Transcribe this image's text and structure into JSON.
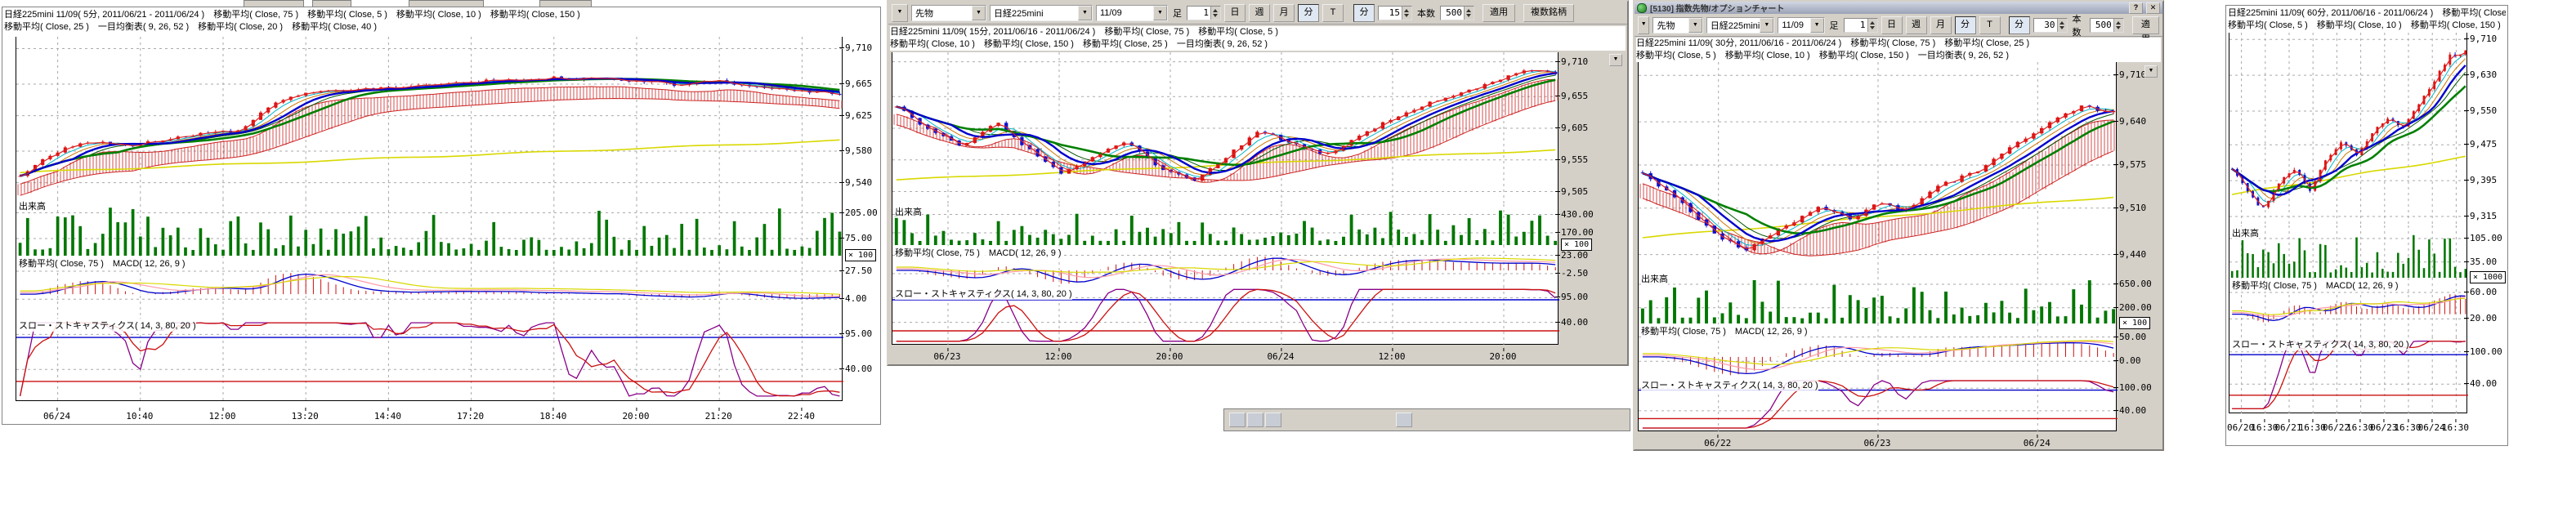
{
  "app": {
    "window3_title": {
      "code_text": "[5130] 指数先物/オプションチャート",
      "help_button": "?",
      "close_button": "✕"
    },
    "colors": {
      "chrome": "#d4d0c8",
      "candle_up": "#dd1111",
      "candle_down": "#1111cc",
      "ma_green": "#008000",
      "ma_blue": "#0000cc",
      "ma_red": "#dd2222",
      "ma_cyan": "#00b8c8",
      "ma_yellow": "#d8d800",
      "ma_orange": "#cc7700",
      "ma_darkgreen": "#005500",
      "volume_bar": "#007700",
      "macd_hist": "#cc1111",
      "stoch_k": "#880088",
      "stoch_d": "#cc1111",
      "stoch_upper_line": "#0000cc",
      "stoch_lower_line": "#cc1111",
      "grid": "#aaaaaa"
    }
  },
  "panels": [
    {
      "header_lines": [
        "日経225mini 11/09( 5分, 2011/06/21 - 2011/06/24 )　移動平均( Close, 75 )　移動平均( Close, 5 )　移動平均( Close, 10 )　移動平均( Close, 150 )",
        "移動平均( Close, 25 )　一目均衡表( 9, 26, 52 )　移動平均( Close, 20 )　移動平均( Close, 40 )"
      ],
      "sections": {
        "volume_label": "出来高",
        "macd_label": "移動平均( Close, 75 )　MACD( 12, 26, 9 )",
        "stoch_label": "スロー・ストキャスティクス( 14, 3, 80, 20 )"
      },
      "axis": {
        "price_ticks": [
          "9,710",
          "9,665",
          "9,625",
          "9,580",
          "9,540"
        ],
        "volume_ticks": [
          "205.00",
          "75.00"
        ],
        "multiplier": "× 100",
        "macd_ticks": [
          "27.50",
          "4.00"
        ],
        "stoch_ticks": [
          "95.00",
          "40.00"
        ]
      },
      "time_ticks": [
        "06/24",
        "10:40",
        "12:00",
        "13:20",
        "14:40",
        "17:20",
        "18:40",
        "20:00",
        "21:20",
        "22:40"
      ]
    },
    {
      "toolbar": {
        "collapse": "▼",
        "market": "先物",
        "symbol": "日経225mini",
        "contract": "11/09",
        "ashi_label": "足",
        "ashi_value": "1",
        "period_day": "日",
        "period_week": "週",
        "period_month": "月",
        "period_min": "分",
        "period_tick": "T",
        "unit_label": "分",
        "unit_value": "15",
        "count_label": "本数",
        "count_value": "500",
        "apply_label": "適用",
        "multi_label": "複数銘柄"
      },
      "header_lines": [
        "日経225mini 11/09( 15分, 2011/06/16 - 2011/06/24 )　移動平均( Close, 75 )　移動平均( Close, 5 )",
        "移動平均( Close, 10 )　移動平均( Close, 150 )　移動平均( Close, 25 )　一目均衡表( 9, 26, 52 )"
      ],
      "sections": {
        "volume_label": "出来高",
        "macd_label": "移動平均( Close, 75 )　MACD( 12, 26, 9 )",
        "stoch_label": "スロー・ストキャスティクス( 14, 3, 80, 20 )"
      },
      "axis": {
        "price_ticks": [
          "9,710",
          "9,655",
          "9,605",
          "9,555",
          "9,505"
        ],
        "volume_ticks": [
          "430.00",
          "170.00"
        ],
        "multiplier": "× 100",
        "macd_ticks": [
          "23.00",
          "-2.50"
        ],
        "stoch_ticks": [
          "95.00",
          "40.00"
        ]
      },
      "time_ticks": [
        "06/23",
        "12:00",
        "20:00",
        "06/24",
        "12:00",
        "20:00"
      ]
    },
    {
      "toolbar": {
        "collapse": "▼",
        "market": "先物",
        "symbol": "日経225mini",
        "contract": "11/09",
        "ashi_label": "足",
        "ashi_value": "1",
        "period_day": "日",
        "period_week": "週",
        "period_month": "月",
        "period_min": "分",
        "period_tick": "T",
        "unit_label": "分",
        "unit_value": "30",
        "count_label": "本数",
        "count_value": "500",
        "apply_label": "適用"
      },
      "header_lines": [
        "日経225mini 11/09( 30分, 2011/06/16 - 2011/06/24 )　移動平均( Close, 75 )　移動平均( Close, 25 )",
        "移動平均( Close, 5 )　移動平均( Close, 10 )　移動平均( Close, 150 )　一目均衡表( 9, 26, 52 )"
      ],
      "sections": {
        "volume_label": "出来高",
        "macd_label": "移動平均( Close, 75 )　MACD( 12, 26, 9 )",
        "stoch_label": "スロー・ストキャスティクス( 14, 3, 80, 20 )"
      },
      "axis": {
        "price_ticks": [
          "9,710",
          "9,640",
          "9,575",
          "9,510",
          "9,440"
        ],
        "volume_ticks": [
          "650.00",
          "200.00"
        ],
        "multiplier": "× 100",
        "macd_ticks": [
          "50.00",
          "0.00"
        ],
        "stoch_ticks": [
          "100.00",
          "40.00"
        ]
      },
      "time_ticks": [
        "06/22",
        "06/23",
        "06/24"
      ]
    },
    {
      "header_lines": [
        "日経225mini 11/09( 60分, 2011/06/16 - 2011/06/24 )　移動平均( Close, 75 )",
        "移動平均( Close, 5 )　移動平均( Close, 10 )　移動平均( Close, 150 )"
      ],
      "sections": {
        "volume_label": "出来高",
        "macd_label": "移動平均( Close, 75 )　MACD( 12, 26, 9 )",
        "stoch_label": "スロー・ストキャスティクス( 14, 3, 80, 20 )"
      },
      "axis": {
        "price_ticks": [
          "9,710",
          "9,630",
          "9,550",
          "9,475",
          "9,395",
          "9,315"
        ],
        "volume_ticks": [
          "105.00",
          "35.00"
        ],
        "multiplier": "× 1000",
        "macd_ticks": [
          "60.00",
          "20.00"
        ],
        "stoch_ticks": [
          "100.00",
          "40.00"
        ]
      },
      "time_ticks": [
        "06/20",
        "16:30",
        "06/21",
        "16:30",
        "06/22",
        "16:30",
        "06/23",
        "16:30",
        "06/24",
        "16:30"
      ]
    }
  ],
  "chart_data": [
    {
      "type": "candlestick",
      "symbol": "日経225mini 11/09",
      "timeframe": "5分",
      "period": "2011/06/21 - 2011/06/24",
      "ylim": [
        9520,
        9725
      ],
      "x_labels": [
        "06/24",
        "10:40",
        "12:00",
        "13:20",
        "14:40",
        "17:20",
        "18:40",
        "20:00",
        "21:20",
        "22:40"
      ],
      "close_keypoints": [
        [
          0,
          9548
        ],
        [
          0.04,
          9578
        ],
        [
          0.08,
          9592
        ],
        [
          0.14,
          9588
        ],
        [
          0.2,
          9600
        ],
        [
          0.27,
          9606
        ],
        [
          0.31,
          9642
        ],
        [
          0.36,
          9656
        ],
        [
          0.45,
          9660
        ],
        [
          0.55,
          9668
        ],
        [
          0.65,
          9673
        ],
        [
          0.74,
          9670
        ],
        [
          0.8,
          9664
        ],
        [
          0.85,
          9669
        ],
        [
          0.9,
          9661
        ],
        [
          0.95,
          9656
        ],
        [
          1,
          9652
        ]
      ],
      "indicators": [
        "MA75",
        "MA5",
        "MA10",
        "MA150",
        "MA25",
        "一目均衡表(9,26,52)",
        "MA20",
        "MA40"
      ],
      "lower_panes": {
        "volume_axis": [
          205.0,
          75.0
        ],
        "volume_multiplier": 100,
        "macd_axis": [
          27.5,
          4.0
        ],
        "stoch_axis": [
          95.0,
          40.0
        ],
        "stoch_bands": [
          80,
          20
        ]
      }
    },
    {
      "type": "candlestick",
      "symbol": "日経225mini 11/09",
      "timeframe": "15分",
      "period": "2011/06/16 - 2011/06/24",
      "ylim": [
        9485,
        9725
      ],
      "x_labels": [
        "06/23",
        "12:00",
        "20:00",
        "06/24",
        "12:00",
        "20:00"
      ],
      "close_keypoints": [
        [
          0,
          9640
        ],
        [
          0.05,
          9602
        ],
        [
          0.1,
          9576
        ],
        [
          0.15,
          9616
        ],
        [
          0.2,
          9572
        ],
        [
          0.25,
          9532
        ],
        [
          0.3,
          9562
        ],
        [
          0.35,
          9586
        ],
        [
          0.4,
          9542
        ],
        [
          0.45,
          9522
        ],
        [
          0.5,
          9560
        ],
        [
          0.55,
          9600
        ],
        [
          0.6,
          9582
        ],
        [
          0.65,
          9562
        ],
        [
          0.7,
          9590
        ],
        [
          0.75,
          9620
        ],
        [
          0.8,
          9642
        ],
        [
          0.86,
          9662
        ],
        [
          0.92,
          9684
        ],
        [
          0.96,
          9698
        ],
        [
          1,
          9690
        ]
      ],
      "indicators": [
        "MA75",
        "MA5",
        "MA10",
        "MA150",
        "MA25",
        "一目均衡表(9,26,52)"
      ],
      "lower_panes": {
        "volume_axis": [
          430.0,
          170.0
        ],
        "volume_multiplier": 100,
        "macd_axis": [
          23.0,
          -2.5
        ],
        "stoch_axis": [
          95.0,
          40.0
        ],
        "stoch_bands": [
          80,
          20
        ]
      }
    },
    {
      "type": "candlestick",
      "symbol": "日経225mini 11/09",
      "timeframe": "30分",
      "period": "2011/06/16 - 2011/06/24",
      "ylim": [
        9415,
        9730
      ],
      "x_labels": [
        "06/22",
        "06/23",
        "06/24"
      ],
      "close_keypoints": [
        [
          0,
          9560
        ],
        [
          0.08,
          9520
        ],
        [
          0.15,
          9472
        ],
        [
          0.22,
          9446
        ],
        [
          0.3,
          9482
        ],
        [
          0.38,
          9512
        ],
        [
          0.45,
          9492
        ],
        [
          0.5,
          9522
        ],
        [
          0.55,
          9502
        ],
        [
          0.62,
          9542
        ],
        [
          0.7,
          9562
        ],
        [
          0.78,
          9602
        ],
        [
          0.85,
          9632
        ],
        [
          0.93,
          9662
        ],
        [
          1,
          9655
        ]
      ],
      "indicators": [
        "MA75",
        "MA25",
        "MA5",
        "MA10",
        "MA150",
        "一目均衡表(9,26,52)"
      ],
      "lower_panes": {
        "volume_axis": [
          650.0,
          200.0
        ],
        "volume_multiplier": 100,
        "macd_axis": [
          50.0,
          0.0
        ],
        "stoch_axis": [
          100.0,
          40.0
        ],
        "stoch_bands": [
          80,
          20
        ]
      }
    },
    {
      "type": "candlestick",
      "symbol": "日経225mini 11/09",
      "timeframe": "60分",
      "period": "2011/06/16 - 2011/06/24",
      "ylim": [
        9295,
        9725
      ],
      "x_labels": [
        "06/20",
        "16:30",
        "06/21",
        "16:30",
        "06/22",
        "16:30",
        "06/23",
        "16:30",
        "06/24",
        "16:30"
      ],
      "close_keypoints": [
        [
          0,
          9420
        ],
        [
          0.07,
          9372
        ],
        [
          0.13,
          9330
        ],
        [
          0.2,
          9390
        ],
        [
          0.27,
          9422
        ],
        [
          0.33,
          9372
        ],
        [
          0.4,
          9440
        ],
        [
          0.47,
          9482
        ],
        [
          0.53,
          9452
        ],
        [
          0.6,
          9502
        ],
        [
          0.67,
          9532
        ],
        [
          0.73,
          9512
        ],
        [
          0.8,
          9562
        ],
        [
          0.87,
          9622
        ],
        [
          0.93,
          9672
        ],
        [
          1,
          9682
        ]
      ],
      "indicators": [
        "MA75",
        "MA5",
        "MA10",
        "MA150"
      ],
      "lower_panes": {
        "volume_axis": [
          105.0,
          35.0
        ],
        "volume_multiplier": 1000,
        "macd_axis": [
          60.0,
          20.0
        ],
        "stoch_axis": [
          100.0,
          40.0
        ],
        "stoch_bands": [
          80,
          20
        ]
      }
    }
  ]
}
